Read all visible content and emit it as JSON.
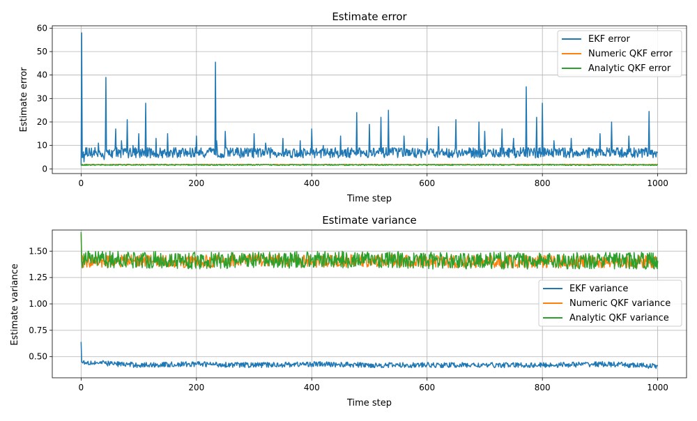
{
  "colors": {
    "ekf": "#1f77b4",
    "numeric": "#ff7f0e",
    "analytic": "#2ca02c"
  },
  "chart_data": [
    {
      "type": "line",
      "title": "Estimate error",
      "xlabel": "Time step",
      "ylabel": "Estimate error",
      "xlim": [
        -50,
        1050
      ],
      "ylim": [
        -2,
        61
      ],
      "xticks": [
        0,
        200,
        400,
        600,
        800,
        1000
      ],
      "yticks": [
        0,
        10,
        20,
        30,
        40,
        50,
        60
      ],
      "grid": true,
      "legend_position": "upper right",
      "series": [
        {
          "name": "EKF error",
          "color": "#1f77b4",
          "x": [
            0,
            1,
            5,
            10,
            20,
            30,
            40,
            43,
            45,
            60,
            70,
            80,
            90,
            100,
            112,
            115,
            130,
            150,
            170,
            200,
            220,
            233,
            235,
            250,
            270,
            300,
            320,
            350,
            380,
            400,
            420,
            450,
            478,
            480,
            500,
            520,
            533,
            535,
            560,
            600,
            620,
            650,
            690,
            700,
            730,
            750,
            772,
            775,
            790,
            800,
            820,
            850,
            880,
            900,
            920,
            950,
            985,
            990,
            1000
          ],
          "values": [
            1.5,
            58,
            3,
            9,
            6,
            11,
            4,
            39,
            8,
            17,
            12,
            21,
            10,
            15,
            28,
            9,
            13,
            15,
            8,
            14,
            7,
            45.5,
            12,
            16,
            9,
            15,
            11,
            13,
            12,
            17,
            10,
            14,
            24,
            8,
            19,
            22,
            25,
            7,
            14,
            13,
            18,
            21,
            20,
            16,
            17,
            13,
            35,
            9,
            22,
            28,
            12,
            13,
            9,
            15,
            20,
            14,
            24.5,
            8,
            7
          ]
        },
        {
          "name": "Numeric QKF error",
          "color": "#ff7f0e",
          "x": [
            0,
            1000
          ],
          "values": [
            1.8,
            1.8
          ]
        },
        {
          "name": "Analytic QKF error",
          "color": "#2ca02c",
          "x": [
            0,
            1000
          ],
          "values": [
            1.7,
            1.7
          ]
        }
      ]
    },
    {
      "type": "line",
      "title": "Estimate variance",
      "xlabel": "Time step",
      "ylabel": "Estimate variance",
      "xlim": [
        -50,
        1050
      ],
      "ylim": [
        0.3,
        1.7
      ],
      "xticks": [
        0,
        200,
        400,
        600,
        800,
        1000
      ],
      "yticks": [
        0.5,
        0.75,
        1.0,
        1.25,
        1.5
      ],
      "ytick_labels": [
        "0.50",
        "0.75",
        "1.00",
        "1.25",
        "1.50"
      ],
      "grid": true,
      "legend_position": "center right",
      "series": [
        {
          "name": "EKF variance",
          "color": "#1f77b4",
          "x": [
            0,
            1,
            100,
            200,
            300,
            400,
            500,
            600,
            700,
            800,
            900,
            1000
          ],
          "values": [
            0.64,
            0.45,
            0.42,
            0.43,
            0.42,
            0.43,
            0.42,
            0.42,
            0.42,
            0.42,
            0.43,
            0.41
          ]
        },
        {
          "name": "Numeric QKF variance",
          "color": "#ff7f0e",
          "x": [
            0,
            1,
            100,
            200,
            300,
            400,
            500,
            600,
            700,
            800,
            900,
            1000
          ],
          "values": [
            1.66,
            1.4,
            1.41,
            1.4,
            1.42,
            1.4,
            1.41,
            1.4,
            1.4,
            1.4,
            1.4,
            1.4
          ]
        },
        {
          "name": "Analytic QKF variance",
          "color": "#2ca02c",
          "x": [
            0,
            1,
            100,
            200,
            300,
            400,
            500,
            600,
            700,
            800,
            900,
            1000
          ],
          "values": [
            1.68,
            1.42,
            1.42,
            1.41,
            1.41,
            1.42,
            1.42,
            1.41,
            1.41,
            1.41,
            1.41,
            1.41
          ]
        }
      ]
    }
  ]
}
